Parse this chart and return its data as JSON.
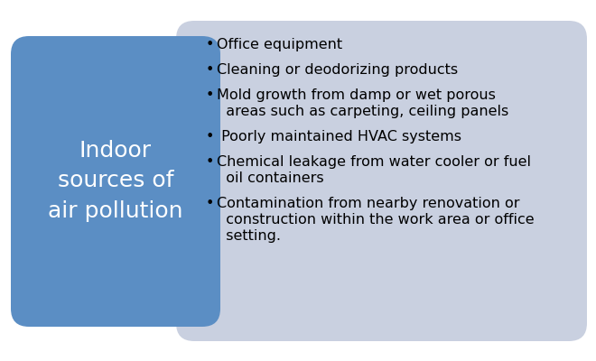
{
  "title_text": "Indoor\nsources of\nair pollution",
  "title_color": "#ffffff",
  "left_box_color": "#5b8ec4",
  "right_box_color": "#c9d0e0",
  "bullet_points": [
    [
      "Office equipment"
    ],
    [
      "Cleaning or deodorizing products"
    ],
    [
      "Mold growth from damp or wet porous",
      "  areas such as carpeting, ceiling panels"
    ],
    [
      " Poorly maintained HVAC systems"
    ],
    [
      "Chemical leakage from water cooler or fuel",
      "  oil containers"
    ],
    [
      "Contamination from nearby renovation or",
      "  construction within the work area or office",
      "  setting."
    ]
  ],
  "bullet_char": "•",
  "text_color": "#000000",
  "bg_color": "#ffffff",
  "title_fontsize": 18,
  "bullet_fontsize": 11.5
}
